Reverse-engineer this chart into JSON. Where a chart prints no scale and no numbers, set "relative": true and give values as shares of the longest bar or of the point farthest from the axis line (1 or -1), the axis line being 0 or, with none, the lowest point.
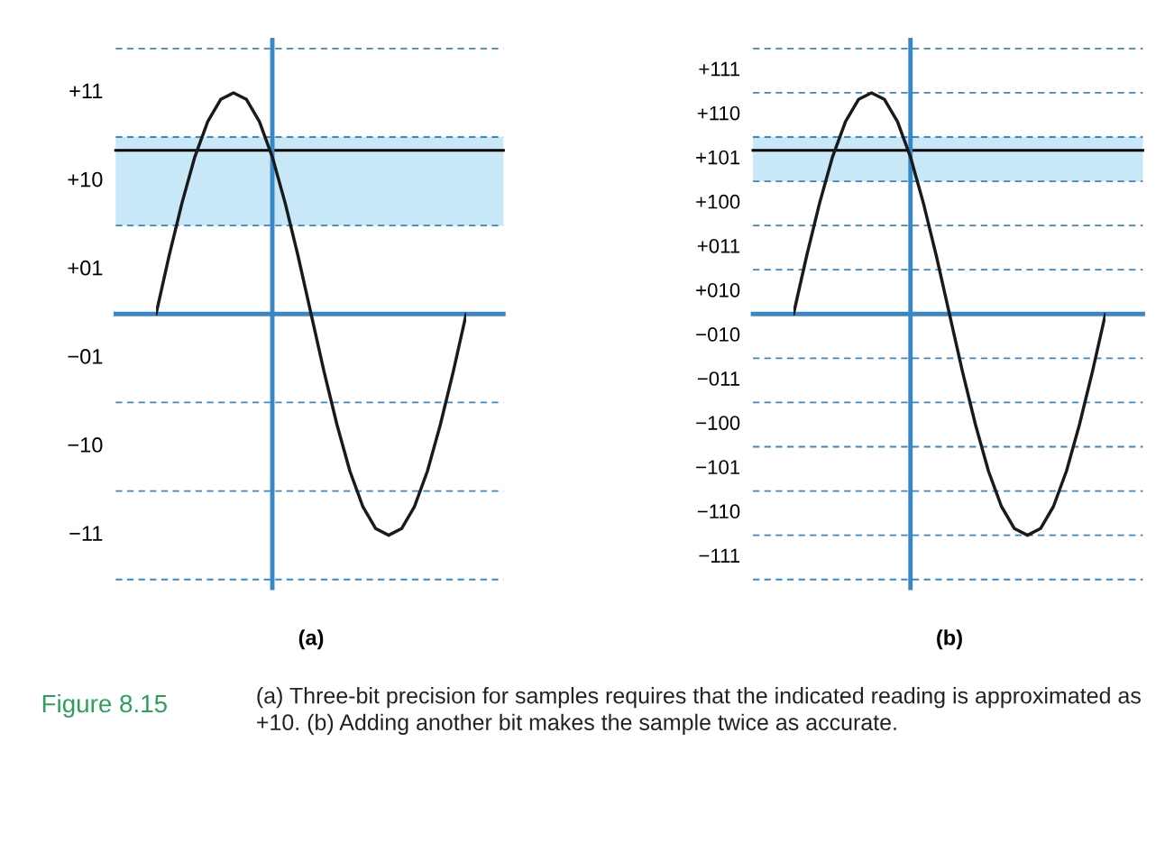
{
  "chart_data": [
    {
      "type": "line",
      "xlabel": "(a)",
      "relative": true,
      "categories": [
        null,
        null,
        null,
        null,
        null,
        null,
        null,
        null,
        null,
        null,
        null,
        null,
        null,
        null,
        null,
        null,
        null,
        null,
        null,
        null,
        null,
        null,
        null,
        null,
        null
      ],
      "series": [
        {
          "color": "#1a1a1a",
          "values": [
            0,
            0.26,
            0.5,
            0.71,
            0.87,
            0.97,
            1,
            0.97,
            0.87,
            0.71,
            0.5,
            0.26,
            0,
            -0.26,
            -0.5,
            -0.71,
            -0.87,
            -0.97,
            -1,
            -0.97,
            -0.87,
            -0.71,
            -0.5,
            -0.26,
            0
          ]
        }
      ],
      "bands": [
        {
          "axis": "y",
          "from": 0.4,
          "to": 0.8,
          "color": "#c8e8f8"
        }
      ],
      "ref_lines": [
        {
          "axis": "y",
          "value": 1.2,
          "color": "#3a87c8",
          "line_style": "dashed"
        },
        {
          "axis": "y",
          "value": 0.8,
          "color": "#3a87c8",
          "line_style": "dashed"
        },
        {
          "axis": "y",
          "value": 0.4,
          "color": "#3a87c8",
          "line_style": "dashed"
        },
        {
          "axis": "y",
          "value": -0.4,
          "color": "#3a87c8",
          "line_style": "dashed"
        },
        {
          "axis": "y",
          "value": -0.8,
          "color": "#3a87c8",
          "line_style": "dashed"
        },
        {
          "axis": "y",
          "value": -1.2,
          "color": "#3a87c8",
          "line_style": "dashed"
        },
        {
          "axis": "y",
          "value": 0,
          "color": "#3a87c8",
          "line_style": "solid"
        },
        {
          "axis": "y",
          "value": 0.74,
          "color": "#000000",
          "line_style": "solid"
        }
      ],
      "annotations": [
        "+11",
        "+10",
        "+01",
        "−01",
        "−10",
        "−11",
        "Figure 8.15",
        "(a) Three-bit precision for samples requires that the indicated reading is approximated as +10. (b) Adding another bit makes the sample twice as accurate."
      ]
    },
    {
      "type": "line",
      "xlabel": "(b)",
      "relative": true,
      "categories": [
        null,
        null,
        null,
        null,
        null,
        null,
        null,
        null,
        null,
        null,
        null,
        null,
        null,
        null,
        null,
        null,
        null,
        null,
        null,
        null,
        null,
        null,
        null,
        null,
        null
      ],
      "series": [
        {
          "color": "#1a1a1a",
          "values": [
            0,
            0.26,
            0.5,
            0.71,
            0.87,
            0.97,
            1,
            0.97,
            0.87,
            0.71,
            0.5,
            0.26,
            0,
            -0.26,
            -0.5,
            -0.71,
            -0.87,
            -0.97,
            -1,
            -0.97,
            -0.87,
            -0.71,
            -0.5,
            -0.26,
            0
          ]
        }
      ],
      "bands": [
        {
          "axis": "y",
          "from": 0.6,
          "to": 0.8,
          "color": "#c8e8f8"
        }
      ],
      "ref_lines": [
        {
          "axis": "y",
          "value": 1.2,
          "color": "#3a87c8",
          "line_style": "dashed"
        },
        {
          "axis": "y",
          "value": 1.0,
          "color": "#3a87c8",
          "line_style": "dashed"
        },
        {
          "axis": "y",
          "value": 0.8,
          "color": "#3a87c8",
          "line_style": "dashed"
        },
        {
          "axis": "y",
          "value": 0.6,
          "color": "#3a87c8",
          "line_style": "dashed"
        },
        {
          "axis": "y",
          "value": 0.4,
          "color": "#3a87c8",
          "line_style": "dashed"
        },
        {
          "axis": "y",
          "value": 0.2,
          "color": "#3a87c8",
          "line_style": "dashed"
        },
        {
          "axis": "y",
          "value": -0.2,
          "color": "#3a87c8",
          "line_style": "dashed"
        },
        {
          "axis": "y",
          "value": -0.4,
          "color": "#3a87c8",
          "line_style": "dashed"
        },
        {
          "axis": "y",
          "value": -0.6,
          "color": "#3a87c8",
          "line_style": "dashed"
        },
        {
          "axis": "y",
          "value": -0.8,
          "color": "#3a87c8",
          "line_style": "dashed"
        },
        {
          "axis": "y",
          "value": -1.0,
          "color": "#3a87c8",
          "line_style": "dashed"
        },
        {
          "axis": "y",
          "value": -1.2,
          "color": "#3a87c8",
          "line_style": "dashed"
        },
        {
          "axis": "y",
          "value": 0,
          "color": "#3a87c8",
          "line_style": "solid"
        },
        {
          "axis": "y",
          "value": 0.74,
          "color": "#000000",
          "line_style": "solid"
        }
      ],
      "annotations": [
        "+111",
        "+110",
        "+101",
        "+100",
        "+011",
        "+010",
        "−010",
        "−011",
        "−100",
        "−101",
        "−110",
        "−111"
      ]
    }
  ]
}
